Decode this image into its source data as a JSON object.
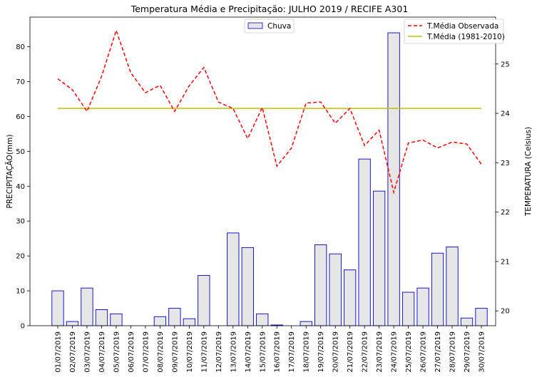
{
  "chart_data": {
    "type": "bar+line",
    "title": "Temperatura Média e Precipitação: JULHO 2019 / RECIFE A301",
    "ylabel_left": "PRECIPITAÇÃO(mm)",
    "ylabel_right": "TEMPERATURA (Celsius)",
    "xlabel": "",
    "ylim_left": [
      0,
      88.5
    ],
    "yticks_left": [
      0,
      10,
      20,
      30,
      40,
      50,
      60,
      70,
      80
    ],
    "ylim_right": [
      19.7,
      25.95
    ],
    "yticks_right": [
      20,
      21,
      22,
      23,
      24,
      25
    ],
    "categories": [
      "01/07/2019",
      "02/07/2019",
      "03/07/2019",
      "04/07/2019",
      "05/07/2019",
      "06/07/2019",
      "07/07/2019",
      "08/07/2019",
      "09/07/2019",
      "10/07/2019",
      "11/07/2019",
      "12/07/2019",
      "13/07/2019",
      "14/07/2019",
      "15/07/2019",
      "16/07/2019",
      "17/07/2019",
      "18/07/2019",
      "19/07/2019",
      "20/07/2019",
      "21/07/2019",
      "22/07/2019",
      "23/07/2019",
      "24/07/2019",
      "25/07/2019",
      "26/07/2019",
      "27/07/2019",
      "28/07/2019",
      "29/07/2019",
      "30/07/2019"
    ],
    "series": [
      {
        "name": "Chuva",
        "kind": "bar",
        "axis": "left",
        "fill": "#e6e6e6",
        "stroke": "#0000cc",
        "values": [
          10.0,
          1.2,
          10.8,
          4.6,
          3.4,
          0,
          0,
          2.6,
          5.0,
          2.0,
          14.4,
          0,
          26.6,
          22.4,
          3.4,
          0.2,
          0,
          1.2,
          23.2,
          20.6,
          16.0,
          47.8,
          38.6,
          84.0,
          9.6,
          10.8,
          20.8,
          22.6,
          2.2,
          5.0
        ]
      },
      {
        "name": "T.Média Observada",
        "kind": "line",
        "axis": "right",
        "style": "dashed",
        "color": "#ff0000",
        "values": [
          24.7,
          24.48,
          24.04,
          24.75,
          25.68,
          24.82,
          24.42,
          24.57,
          24.04,
          24.56,
          24.93,
          24.23,
          24.1,
          23.49,
          24.12,
          22.93,
          23.3,
          24.21,
          24.23,
          23.8,
          24.1,
          23.35,
          23.66,
          22.4,
          23.4,
          23.46,
          23.3,
          23.42,
          23.38,
          22.97
        ]
      },
      {
        "name": "T.Média (1981-2010)",
        "kind": "line",
        "axis": "right",
        "style": "solid",
        "color": "#bfbf00",
        "values": [
          24.1,
          24.1,
          24.1,
          24.1,
          24.1,
          24.1,
          24.1,
          24.1,
          24.1,
          24.1,
          24.1,
          24.1,
          24.1,
          24.1,
          24.1,
          24.1,
          24.1,
          24.1,
          24.1,
          24.1,
          24.1,
          24.1,
          24.1,
          24.1,
          24.1,
          24.1,
          24.1,
          24.1,
          24.1,
          24.1
        ]
      }
    ],
    "legend_left_placement": "top-center",
    "legend_right_placement": "top-right",
    "grid": false
  }
}
